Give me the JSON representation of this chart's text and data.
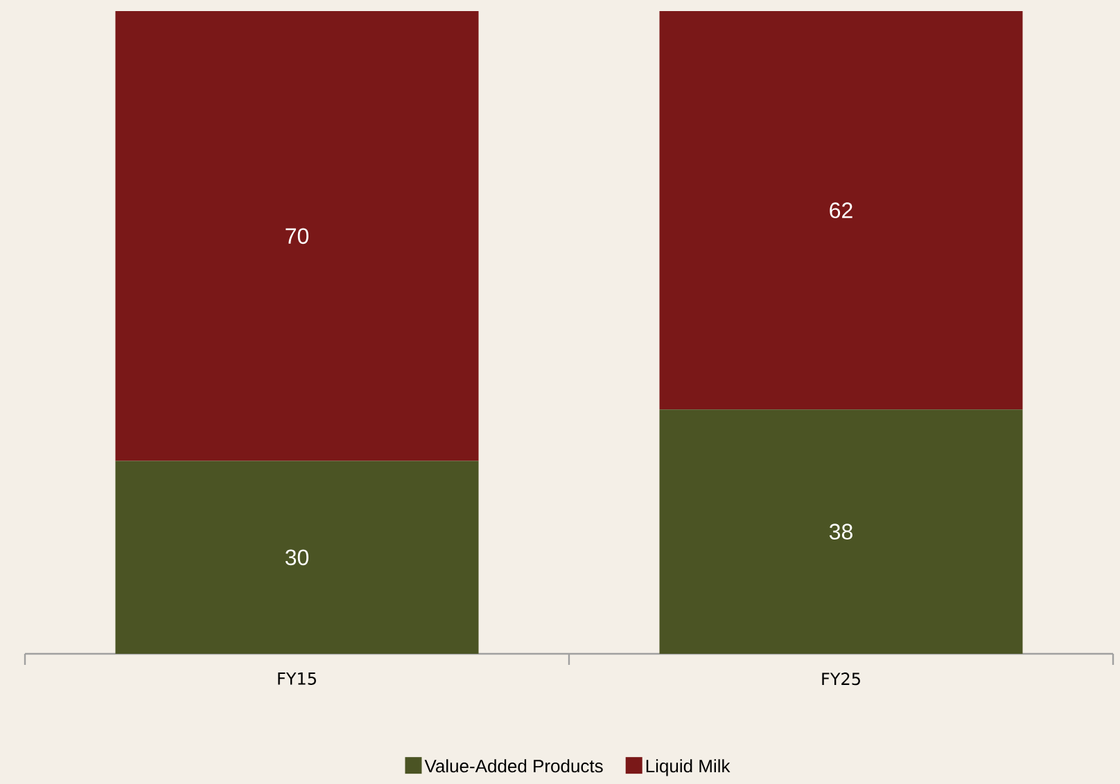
{
  "chart_data": {
    "type": "bar",
    "stacked": true,
    "categories": [
      "FY15",
      "FY25"
    ],
    "series": [
      {
        "name": "Value-Added Products",
        "color": "#4b5424",
        "values": [
          30,
          38
        ]
      },
      {
        "name": "Liquid Milk",
        "color": "#7a1818",
        "values": [
          70,
          62
        ]
      }
    ],
    "data_labels": true,
    "legend": "bottom"
  }
}
